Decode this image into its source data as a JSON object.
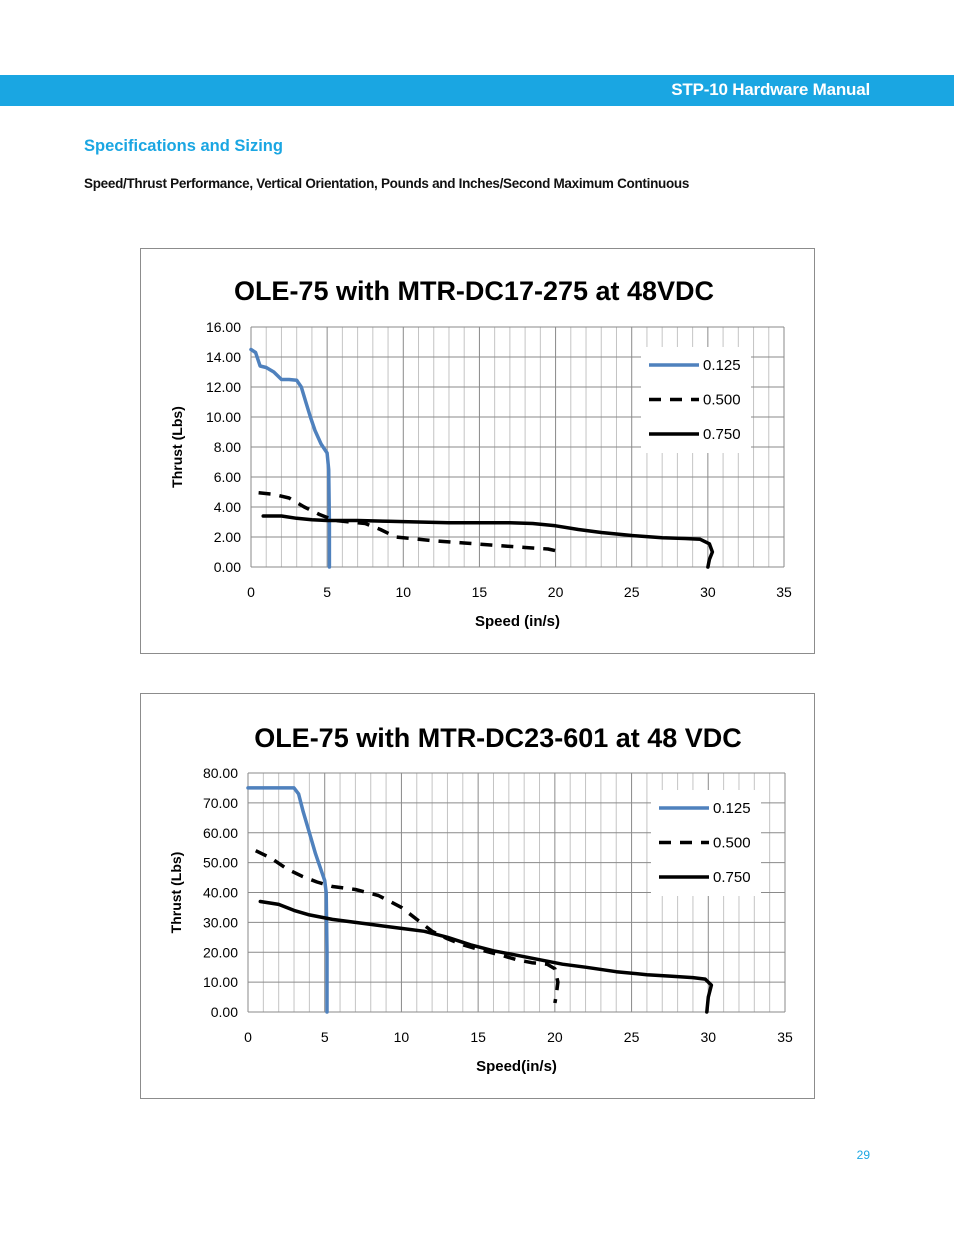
{
  "header": {
    "title": "STP-10 Hardware Manual"
  },
  "section": {
    "title": "Specifications and Sizing",
    "subtitle": "Speed/Thrust Performance, Vertical Orientation, Pounds and Inches/Second Maximum Continuous"
  },
  "page_number": "29",
  "chart_data": [
    {
      "type": "line",
      "title": "OLE-75 with MTR-DC17-275 at 48VDC",
      "xlabel": "Speed (in/s)",
      "ylabel": "Thrust (Lbs)",
      "xlim": [
        0,
        35
      ],
      "ylim": [
        0,
        16
      ],
      "x_ticks": [
        "0",
        "5",
        "10",
        "15",
        "20",
        "25",
        "30",
        "35"
      ],
      "y_ticks": [
        "0.00",
        "2.00",
        "4.00",
        "6.00",
        "8.00",
        "10.00",
        "12.00",
        "14.00",
        "16.00"
      ],
      "grid": true,
      "legend": "top-right",
      "series": [
        {
          "name": "0.125",
          "color": "#4f81bd",
          "style": "solid",
          "points": [
            [
              0,
              14.5
            ],
            [
              0.3,
              14.3
            ],
            [
              0.6,
              13.4
            ],
            [
              1.0,
              13.3
            ],
            [
              1.5,
              13.0
            ],
            [
              2.0,
              12.5
            ],
            [
              2.5,
              12.5
            ],
            [
              3.0,
              12.45
            ],
            [
              3.3,
              12.0
            ],
            [
              3.6,
              11.0
            ],
            [
              3.9,
              10.0
            ],
            [
              4.2,
              9.1
            ],
            [
              4.6,
              8.2
            ],
            [
              5.0,
              7.6
            ],
            [
              5.1,
              6.5
            ],
            [
              5.15,
              3.0
            ],
            [
              5.15,
              0
            ]
          ]
        },
        {
          "name": "0.500",
          "color": "#000000",
          "style": "dashed",
          "points": [
            [
              0.5,
              4.95
            ],
            [
              1.5,
              4.85
            ],
            [
              2.5,
              4.6
            ],
            [
              3.5,
              4.0
            ],
            [
              4.5,
              3.5
            ],
            [
              5.5,
              3.1
            ],
            [
              6.5,
              3.0
            ],
            [
              7.5,
              2.9
            ],
            [
              8.5,
              2.5
            ],
            [
              9.5,
              2.0
            ],
            [
              10.5,
              1.9
            ],
            [
              12,
              1.75
            ],
            [
              14,
              1.6
            ],
            [
              16,
              1.45
            ],
            [
              18,
              1.3
            ],
            [
              19.5,
              1.2
            ],
            [
              20.2,
              1.05
            ]
          ]
        },
        {
          "name": "0.750",
          "color": "#000000",
          "style": "solid",
          "points": [
            [
              0.8,
              3.4
            ],
            [
              2,
              3.4
            ],
            [
              3,
              3.25
            ],
            [
              4,
              3.15
            ],
            [
              5,
              3.1
            ],
            [
              7,
              3.1
            ],
            [
              9,
              3.05
            ],
            [
              11,
              3.0
            ],
            [
              13,
              2.95
            ],
            [
              15,
              2.95
            ],
            [
              17,
              2.95
            ],
            [
              18.5,
              2.9
            ],
            [
              20,
              2.75
            ],
            [
              21.5,
              2.5
            ],
            [
              23,
              2.3
            ],
            [
              25,
              2.1
            ],
            [
              27,
              1.95
            ],
            [
              28.5,
              1.9
            ],
            [
              29.5,
              1.85
            ],
            [
              30.1,
              1.55
            ],
            [
              30.3,
              1.0
            ],
            [
              30.1,
              0.5
            ],
            [
              30.0,
              0
            ]
          ]
        }
      ]
    },
    {
      "type": "line",
      "title": "OLE-75 with MTR-DC23-601 at 48 VDC",
      "xlabel": "Speed(in/s)",
      "ylabel": "Thrust (Lbs)",
      "xlim": [
        0,
        35
      ],
      "ylim": [
        0,
        80
      ],
      "x_ticks": [
        "0",
        "5",
        "10",
        "15",
        "20",
        "25",
        "30",
        "35"
      ],
      "y_ticks": [
        "0.00",
        "10.00",
        "20.00",
        "30.00",
        "40.00",
        "50.00",
        "60.00",
        "70.00",
        "80.00"
      ],
      "grid": true,
      "legend": "top-right",
      "series": [
        {
          "name": "0.125",
          "color": "#4f81bd",
          "style": "solid",
          "points": [
            [
              0,
              75
            ],
            [
              1,
              75
            ],
            [
              2,
              75
            ],
            [
              3,
              75
            ],
            [
              3.3,
              73
            ],
            [
              3.6,
              67
            ],
            [
              4.0,
              60
            ],
            [
              4.4,
              53
            ],
            [
              4.8,
              47
            ],
            [
              5.0,
              44
            ],
            [
              5.1,
              40
            ],
            [
              5.15,
              20
            ],
            [
              5.15,
              0
            ]
          ]
        },
        {
          "name": "0.500",
          "color": "#000000",
          "style": "dashed",
          "points": [
            [
              0.5,
              54
            ],
            [
              1.5,
              51.5
            ],
            [
              2.5,
              48
            ],
            [
              3.5,
              45.5
            ],
            [
              4.5,
              43.5
            ],
            [
              5.5,
              42
            ],
            [
              7,
              41
            ],
            [
              8.5,
              39
            ],
            [
              10,
              35
            ],
            [
              11,
              31
            ],
            [
              12,
              27
            ],
            [
              13,
              24.5
            ],
            [
              14,
              22.5
            ],
            [
              15,
              21
            ],
            [
              16.5,
              19
            ],
            [
              17.5,
              17.5
            ],
            [
              18.5,
              16.5
            ],
            [
              19.5,
              16
            ],
            [
              20,
              14.5
            ],
            [
              20.2,
              10
            ],
            [
              20.1,
              6
            ],
            [
              20.0,
              3
            ]
          ]
        },
        {
          "name": "0.750",
          "color": "#000000",
          "style": "solid",
          "points": [
            [
              0.8,
              37
            ],
            [
              2,
              36
            ],
            [
              3,
              34
            ],
            [
              4,
              32.5
            ],
            [
              5.5,
              31
            ],
            [
              7,
              30
            ],
            [
              8.5,
              29
            ],
            [
              10,
              28
            ],
            [
              11.5,
              27
            ],
            [
              13,
              25
            ],
            [
              14.5,
              22.5
            ],
            [
              16,
              20.5
            ],
            [
              17.5,
              19
            ],
            [
              19,
              17.5
            ],
            [
              20.5,
              16
            ],
            [
              22,
              15
            ],
            [
              24,
              13.5
            ],
            [
              26,
              12.5
            ],
            [
              27.5,
              12
            ],
            [
              29,
              11.5
            ],
            [
              29.8,
              11
            ],
            [
              30.2,
              9
            ],
            [
              30.0,
              5
            ],
            [
              29.9,
              0
            ]
          ]
        }
      ]
    }
  ]
}
